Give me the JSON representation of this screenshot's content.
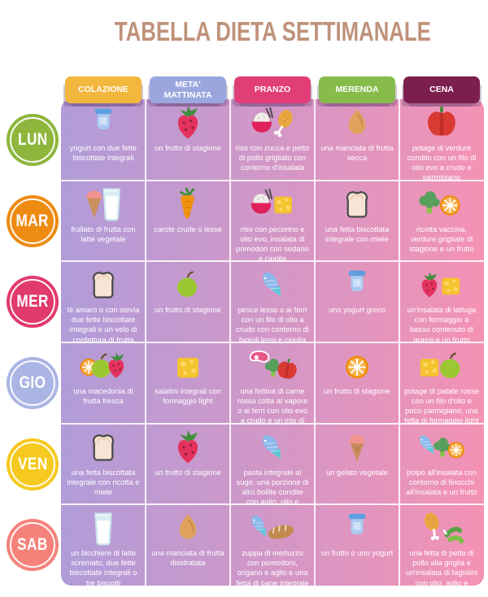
{
  "title": {
    "text": "TABELLA DIETA SETTIMANALE",
    "color": "#bf927b"
  },
  "table": {
    "gradient_left": "#b19cd9",
    "gradient_right": "#f492b4",
    "divider_color": "#ffffff",
    "text_color": "#ffffff"
  },
  "columns": [
    {
      "label": "COLAZIONE",
      "color": "#f3b73e"
    },
    {
      "label": "META' MATTINATA",
      "color": "#9ba6de"
    },
    {
      "label": "PRANZO",
      "color": "#e13e77"
    },
    {
      "label": "MERENDA",
      "color": "#87bc4a"
    },
    {
      "label": "CENA",
      "color": "#7c1f4e"
    }
  ],
  "rows": [
    {
      "day": "LUN",
      "color": "#8eb63d",
      "cells": [
        {
          "icon": "yogurt-icon",
          "text": "yogurt con due fette biscottate integrali"
        },
        {
          "icon": "strawberry-icon",
          "text": "un frutto di stagione"
        },
        {
          "icon": "rice-chicken-icon",
          "text": "riso con zucca e petto di pollo grigliato con contorno d'insalata"
        },
        {
          "icon": "almond-icon",
          "text": "una manciata di frutta secca"
        },
        {
          "icon": "pepper-icon",
          "text": "potage di verdure condito con un filo di olio evo a crudo e parmigiano"
        }
      ]
    },
    {
      "day": "MAR",
      "color": "#ee8b13",
      "cells": [
        {
          "icon": "smoothie-icon",
          "text": "frullato di frutta con latte vegetale"
        },
        {
          "icon": "carrot-icon",
          "text": "carote crude o lesse"
        },
        {
          "icon": "rice-cheese-icon",
          "text": "riso con pecorino e olio evo, insalata di pomodori con sedano e cipolla"
        },
        {
          "icon": "bread-icon",
          "text": "una fetta biscottata integrale con miele"
        },
        {
          "icon": "broccoli-orange-icon",
          "text": "ricotta vaccina, verdure grigliate di stagione e un frutto"
        }
      ]
    },
    {
      "day": "MER",
      "color": "#e23a6e",
      "cells": [
        {
          "icon": "bread-icon",
          "text": "tè amaro o con stevia due fette biscottate integrali e un velo di confettura di frutta"
        },
        {
          "icon": "apple-icon",
          "text": "un frutto di stagione"
        },
        {
          "icon": "fish-icon",
          "text": "pesce lesso o ai ferri con un filo di olio a crudo con contorno di fagioli lessi e cipolla"
        },
        {
          "icon": "yogurt-icon",
          "text": "uno yogurt greco"
        },
        {
          "icon": "strawberry-cheese-icon",
          "text": "un'insalata di lattuga con formaggio a basso contenuto di grassi e un frutto"
        }
      ]
    },
    {
      "day": "GIO",
      "color": "#abb5e4",
      "cells": [
        {
          "icon": "fruit-salad-icon",
          "text": "una macedonia di frutta fresca"
        },
        {
          "icon": "cheese-icon",
          "text": "salatini integrali con formaggio light"
        },
        {
          "icon": "meat-vegetables-icon",
          "text": "una fettina di carne rossa cotta al vapore o ai ferri con olio evo a crudo e un mix di verdure lesse"
        },
        {
          "icon": "orange-icon",
          "text": "un frutto di stagione"
        },
        {
          "icon": "cheese-apple-icon",
          "text": "potage di patate rosse con un filo d'olio e poco parmigiano, una fetta di formaggio light e un frutto"
        }
      ]
    },
    {
      "day": "VEN",
      "color": "#f6c91e",
      "cells": [
        {
          "icon": "bread-icon",
          "text": "una fetta biscottata integrale con ricotta e miele"
        },
        {
          "icon": "strawberry-icon",
          "text": "un frutto di stagione"
        },
        {
          "icon": "fish-icon",
          "text": "pasta integrale al sugo, una porzione di alici bollite condite con aglio, olio e prezzemolo"
        },
        {
          "icon": "gelato-icon",
          "text": "un gelato vegetale"
        },
        {
          "icon": "fish-broccoli-orange-icon",
          "text": "polpo all'insalata con contorno di finocchi all'insalata e un frutto"
        }
      ]
    },
    {
      "day": "SAB",
      "color": "#f5827a",
      "cells": [
        {
          "icon": "milk-icon",
          "text": "un bicchiere di latte scremato, due fette biscottate integrali o tre biscotti"
        },
        {
          "icon": "almond-icon",
          "text": "una manciata di frutta disidratata"
        },
        {
          "icon": "fish-bread-icon",
          "text": "zuppa di merluzzo con pomodoro, origano e aglio e una fetta di pane integrale tostato"
        },
        {
          "icon": "yogurt-icon",
          "text": "un frutto o uno yogurt"
        },
        {
          "icon": "chicken-beans-icon",
          "text": "una fetta di petto di pollo alla griglia e un'insalata di fagiolini con olio, aglio e menta"
        }
      ]
    }
  ]
}
